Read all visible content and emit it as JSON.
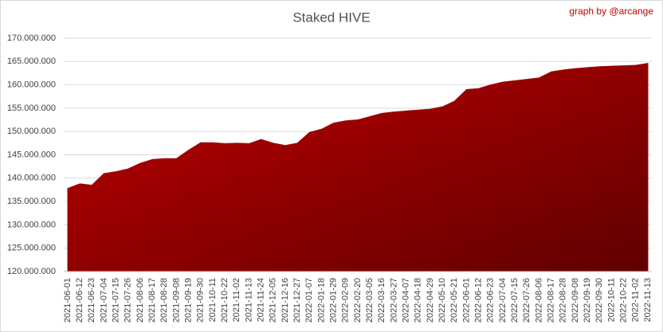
{
  "chart_data": {
    "type": "area",
    "title": "Staked HIVE",
    "annotation": "graph by @arcange",
    "categories": [
      "2021-06-01",
      "2021-06-12",
      "2021-06-23",
      "2021-07-04",
      "2021-07-15",
      "2021-07-26",
      "2021-08-06",
      "2021-08-17",
      "2021-08-28",
      "2021-09-08",
      "2021-09-19",
      "2021-09-30",
      "2021-10-11",
      "2021-10-22",
      "2021-11-02",
      "2021-11-13",
      "2021-11-24",
      "2021-12-05",
      "2021-12-16",
      "2021-12-27",
      "2022-01-07",
      "2022-01-18",
      "2022-01-29",
      "2022-02-09",
      "2022-02-20",
      "2022-03-05",
      "2022-03-16",
      "2022-03-27",
      "2022-04-07",
      "2022-04-18",
      "2022-04-29",
      "2022-05-10",
      "2022-05-21",
      "2022-06-01",
      "2022-06-12",
      "2022-06-23",
      "2022-07-04",
      "2022-07-15",
      "2022-07-26",
      "2022-08-06",
      "2022-08-17",
      "2022-08-28",
      "2022-09-08",
      "2022-09-19",
      "2022-09-30",
      "2022-10-11",
      "2022-10-22",
      "2022-11-02",
      "2022-11-13"
    ],
    "series": [
      {
        "name": "Staked HIVE",
        "color": "#a00000",
        "values": [
          137800000,
          138800000,
          138500000,
          141000000,
          141400000,
          142000000,
          143200000,
          144000000,
          144200000,
          144200000,
          146000000,
          147600000,
          147600000,
          147400000,
          147500000,
          147400000,
          148300000,
          147500000,
          147000000,
          147500000,
          149800000,
          150500000,
          151800000,
          152300000,
          152500000,
          153200000,
          153900000,
          154200000,
          154400000,
          154600000,
          154800000,
          155300000,
          156500000,
          159000000,
          159200000,
          160000000,
          160600000,
          160900000,
          161200000,
          161500000,
          162800000,
          163200000,
          163500000,
          163700000,
          163900000,
          164000000,
          164100000,
          164200000,
          164600000
        ]
      }
    ],
    "ylim": [
      120000000,
      170000000
    ],
    "yticks": [
      {
        "value": 120000000,
        "label": "120.000.000"
      },
      {
        "value": 125000000,
        "label": "125.000.000"
      },
      {
        "value": 130000000,
        "label": "130.000.000"
      },
      {
        "value": 135000000,
        "label": "135.000.000"
      },
      {
        "value": 140000000,
        "label": "140.000.000"
      },
      {
        "value": 145000000,
        "label": "145.000.000"
      },
      {
        "value": 150000000,
        "label": "150.000.000"
      },
      {
        "value": 155000000,
        "label": "155.000.000"
      },
      {
        "value": 160000000,
        "label": "160.000.000"
      },
      {
        "value": 165000000,
        "label": "165.000.000"
      },
      {
        "value": 170000000,
        "label": "170.000.000"
      }
    ],
    "grid": true
  }
}
